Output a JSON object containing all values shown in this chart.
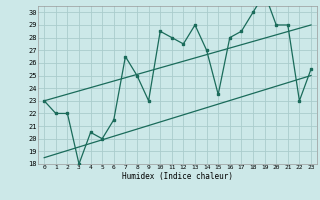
{
  "xlabel": "Humidex (Indice chaleur)",
  "bg_color": "#cce8e8",
  "grid_color": "#aacccc",
  "line_color": "#1a6b5a",
  "xlim": [
    -0.5,
    23.5
  ],
  "ylim": [
    18,
    30.5
  ],
  "yticks": [
    18,
    19,
    20,
    21,
    22,
    23,
    24,
    25,
    26,
    27,
    28,
    29,
    30
  ],
  "xticks": [
    0,
    1,
    2,
    3,
    4,
    5,
    6,
    7,
    8,
    9,
    10,
    11,
    12,
    13,
    14,
    15,
    16,
    17,
    18,
    19,
    20,
    21,
    22,
    23
  ],
  "data_x": [
    0,
    1,
    2,
    3,
    4,
    5,
    6,
    7,
    8,
    9,
    10,
    11,
    12,
    13,
    14,
    15,
    16,
    17,
    18,
    19,
    20,
    21,
    22,
    23
  ],
  "data_y": [
    23.0,
    22.0,
    22.0,
    18.0,
    20.5,
    20.0,
    21.5,
    26.5,
    25.0,
    23.0,
    28.5,
    28.0,
    27.5,
    29.0,
    27.0,
    23.5,
    28.0,
    28.5,
    30.0,
    31.5,
    29.0,
    29.0,
    23.0,
    25.5
  ],
  "trend1_x": [
    0,
    23
  ],
  "trend1_y": [
    23.0,
    29.0
  ],
  "trend2_x": [
    0,
    23
  ],
  "trend2_y": [
    18.5,
    25.0
  ],
  "xtick_fontsize": 4.5,
  "ytick_fontsize": 5.0,
  "xlabel_fontsize": 5.5
}
